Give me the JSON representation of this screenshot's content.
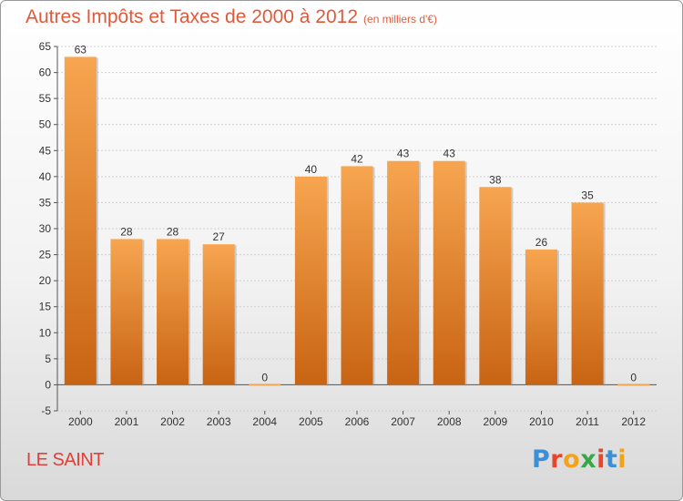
{
  "header": {
    "title": "Autres Impôts et Taxes de 2000 à 2012",
    "unit": "(en milliers d'€)"
  },
  "footer": {
    "commune": "LE SAINT",
    "logo_text": "Proxiti"
  },
  "colors": {
    "title": "#e05a3a",
    "bar_top": "#f7a550",
    "bar_bottom": "#c86414",
    "commune": "#e0403a"
  },
  "chart_data": {
    "type": "bar",
    "categories": [
      "2000",
      "2001",
      "2002",
      "2003",
      "2004",
      "2005",
      "2006",
      "2007",
      "2008",
      "2009",
      "2010",
      "2011",
      "2012"
    ],
    "values": [
      63,
      28,
      28,
      27,
      0,
      40,
      42,
      43,
      43,
      38,
      26,
      35,
      0
    ],
    "title": "Autres Impôts et Taxes de 2000 à 2012",
    "subtitle": "(en milliers d'€)",
    "ylim": [
      -5,
      65
    ],
    "yticks": [
      -5,
      0,
      5,
      10,
      15,
      20,
      25,
      30,
      35,
      40,
      45,
      50,
      55,
      60,
      65
    ],
    "grid": "horizontal-dashed",
    "data_labels": true
  }
}
